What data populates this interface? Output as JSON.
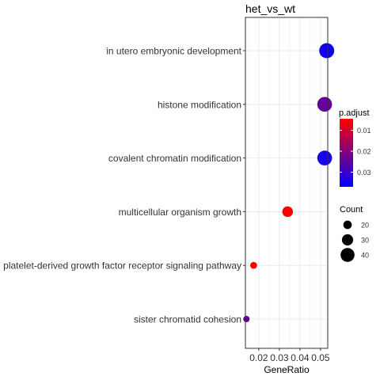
{
  "chart_data": {
    "type": "scatter",
    "title": "het_vs_wt",
    "xlabel": "GeneRatio",
    "ylabel": "",
    "xlim": [
      0.0135,
      0.0535
    ],
    "x_ticks": [
      0.02,
      0.03,
      0.04,
      0.05
    ],
    "x_tick_labels": [
      "0.02",
      "0.03",
      "0.04",
      "0.05"
    ],
    "grid": true,
    "legend_position": "right",
    "categories": [
      "in utero embryonic development",
      "histone modification",
      "covalent chromatin modification",
      "multicellular organism growth",
      "platelet-derived growth factor receptor signaling pathway",
      "sister chromatid cohesion"
    ],
    "points": [
      {
        "term": "in utero embryonic development",
        "gene_ratio": 0.053,
        "count": 44,
        "p_adjust": 0.035
      },
      {
        "term": "histone modification",
        "gene_ratio": 0.052,
        "count": 43,
        "p_adjust": 0.024
      },
      {
        "term": "covalent chromatin modification",
        "gene_ratio": 0.052,
        "count": 43,
        "p_adjust": 0.034
      },
      {
        "term": "multicellular organism growth",
        "gene_ratio": 0.034,
        "count": 28,
        "p_adjust": 0.0045
      },
      {
        "term": "platelet-derived growth factor receptor signaling pathway",
        "gene_ratio": 0.0175,
        "count": 14,
        "p_adjust": 0.005
      },
      {
        "term": "sister chromatid cohesion",
        "gene_ratio": 0.014,
        "count": 12,
        "p_adjust": 0.024
      }
    ],
    "color_legend": {
      "title": "p.adjust",
      "range": [
        0.0045,
        0.037
      ],
      "low_color": "#ff0000",
      "high_color": "#0000ff",
      "ticks": [
        0.01,
        0.02,
        0.03
      ],
      "tick_labels": [
        "0.01",
        "0.02",
        "0.03"
      ]
    },
    "size_legend": {
      "title": "Count",
      "values": [
        20,
        30,
        40
      ],
      "labels": [
        "20",
        "30",
        "40"
      ]
    },
    "colors": {
      "panel_background": "#ffffff",
      "grid": "#ebebeb",
      "border": "#333333",
      "point_low_p": "#ff0000",
      "point_high_p": "#0000ff"
    }
  }
}
